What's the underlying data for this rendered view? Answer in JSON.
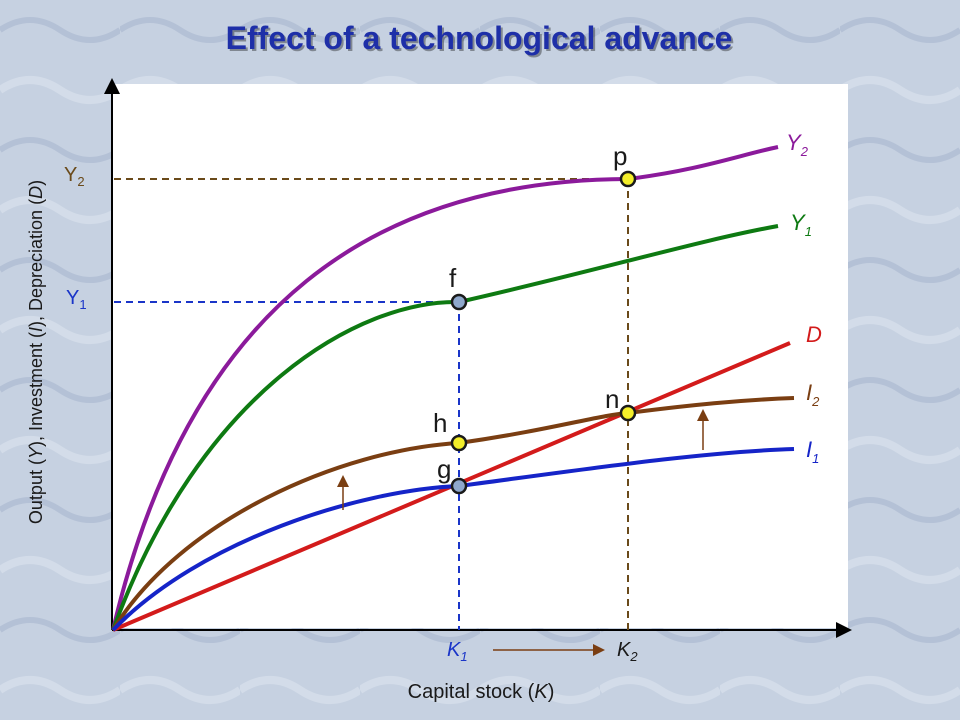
{
  "slide": {
    "title": "Effect of a technological advance",
    "xlabel_prefix": "Capital stock (",
    "xlabel_var": "K",
    "xlabel_suffix": ")",
    "ylabel_p1": "Output (",
    "ylabel_v1": "Y",
    "ylabel_p2": "), Investment (",
    "ylabel_v2": "I",
    "ylabel_p3": "), Depreciation (",
    "ylabel_v3": "D",
    "ylabel_p4": ")"
  },
  "curve_labels": {
    "y2": {
      "main": "Y",
      "sub": "2"
    },
    "y1": {
      "main": "Y",
      "sub": "1"
    },
    "d": {
      "main": "D"
    },
    "i2": {
      "main": "I",
      "sub": "2"
    },
    "i1": {
      "main": "I",
      "sub": "1"
    }
  },
  "axis_labels": {
    "y2": {
      "main": "Y",
      "sub": "2"
    },
    "y1": {
      "main": "Y",
      "sub": "1"
    },
    "k1": {
      "main": "K",
      "sub": "1"
    },
    "k2": {
      "main": "K",
      "sub": "2"
    }
  },
  "points": {
    "p": "p",
    "f": "f",
    "n": "n",
    "h": "h",
    "g": "g"
  },
  "colors": {
    "y2": "#8b1a9b",
    "y1": "#0e7a12",
    "d": "#d31b1b",
    "i2": "#7a3e12",
    "i1": "#1524c8",
    "guide_blue": "#1a35c8",
    "guide_brown": "#6a4a1a",
    "point_blue": "#8fa8cc",
    "point_yellow": "#f3ee2a",
    "title": "#1e2fa8",
    "plot_bg": "#ffffff",
    "backdrop": "#c3cede"
  }
}
